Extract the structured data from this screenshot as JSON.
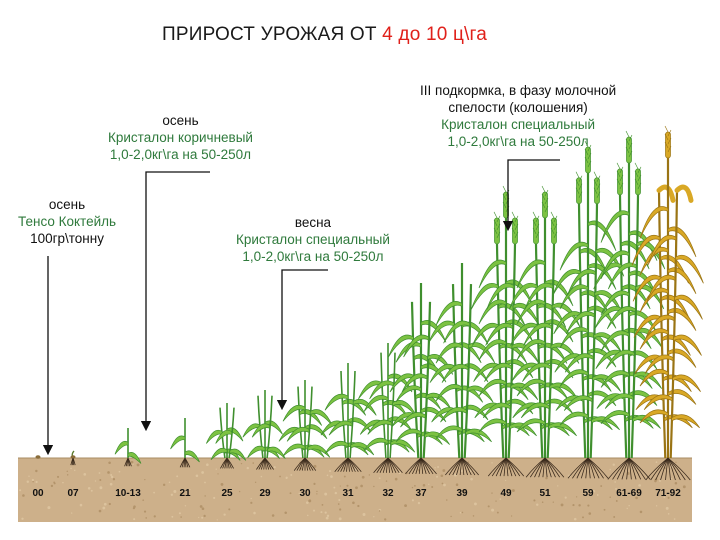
{
  "title": {
    "prefix": "ПРИРОСТ УРОЖАЯ ОТ ",
    "highlight": "4 до 10 ц\\га"
  },
  "annotations": [
    {
      "id": "a1",
      "head": "осень",
      "product": "Тенсо Коктейль",
      "dose": "100гр\\тонну"
    },
    {
      "id": "a2",
      "head": "осень",
      "product": "Кристалон коричневый",
      "dose": "1,0-2,0кг\\га на 50-250л"
    },
    {
      "id": "a3",
      "head": "весна",
      "product": "Кристалон специальный",
      "dose": "1,0-2,0кг\\га на 50-250л"
    },
    {
      "id": "a4",
      "head": "III подкормка, в фазу молочной",
      "head2": "спелости (колошения)",
      "product": "Кристалон специальный",
      "dose": "1,0-2,0кг\\га на 50-250л"
    }
  ],
  "stages": [
    "00",
    "07",
    "10-13",
    "21",
    "25",
    "29",
    "30",
    "31",
    "32",
    "37",
    "39",
    "49",
    "51",
    "59",
    "61-69",
    "71-92"
  ],
  "colors": {
    "soil": "#cdb08a",
    "leaf": "#7cc242",
    "leaf_dark": "#3f8f2e",
    "ripe": "#d9a825",
    "title_highlight": "#e0201a",
    "text_green": "#2f7a3c"
  }
}
